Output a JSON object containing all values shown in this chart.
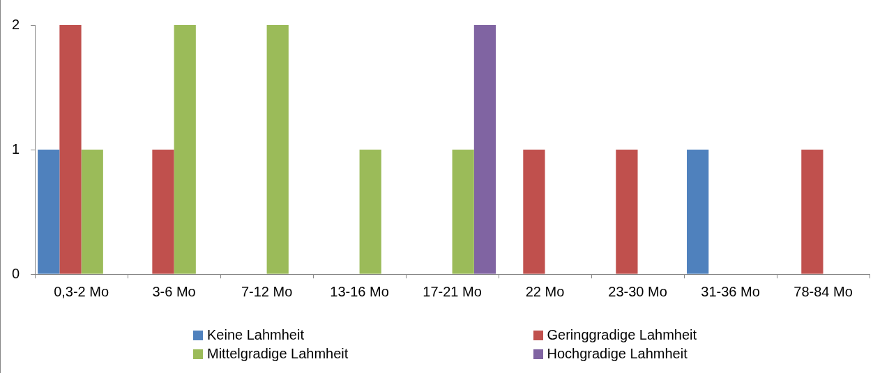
{
  "chart_data": {
    "type": "bar",
    "categories": [
      "0,3-2 Mo",
      "3-6 Mo",
      "7-12 Mo",
      "13-16 Mo",
      "17-21 Mo",
      "22 Mo",
      "23-30 Mo",
      "31-36 Mo",
      "78-84 Mo"
    ],
    "series": [
      {
        "name": "Keine Lahmheit",
        "color": "#4f81bd",
        "values": [
          1,
          0,
          0,
          0,
          0,
          0,
          0,
          1,
          0
        ]
      },
      {
        "name": "Geringgradige Lahmheit",
        "color": "#c0504d",
        "values": [
          2,
          1,
          0,
          0,
          0,
          1,
          1,
          0,
          1
        ]
      },
      {
        "name": "Mittelgradige Lahmheit",
        "color": "#9bbb59",
        "values": [
          1,
          2,
          2,
          1,
          1,
          0,
          0,
          0,
          0
        ]
      },
      {
        "name": "Hochgradige Lahmheit",
        "color": "#8064a2",
        "values": [
          0,
          0,
          0,
          0,
          2,
          0,
          0,
          0,
          0
        ]
      }
    ],
    "ylim": [
      0,
      2
    ],
    "yticks": [
      0,
      1,
      2
    ],
    "grid": false,
    "legend": "bottom"
  }
}
